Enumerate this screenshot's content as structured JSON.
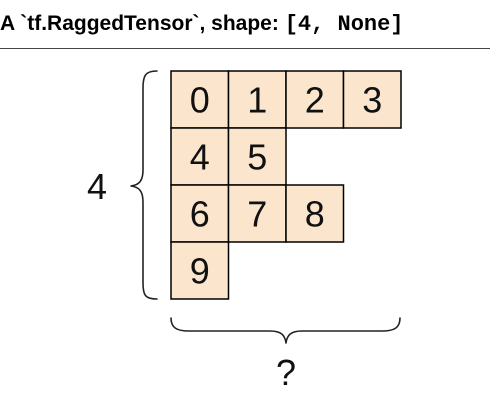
{
  "header": {
    "title_prefix": "A `tf.RaggedTensor`, shape: ",
    "title_shape": "[4, None]"
  },
  "diagram": {
    "rows": [
      [
        "0",
        "1",
        "2",
        "3"
      ],
      [
        "4",
        "5"
      ],
      [
        "6",
        "7",
        "8"
      ],
      [
        "9"
      ]
    ],
    "row_count_label": "4",
    "column_count_label": "?",
    "cell_fill": "#fbe5cd",
    "cell_stroke": "#000000"
  }
}
